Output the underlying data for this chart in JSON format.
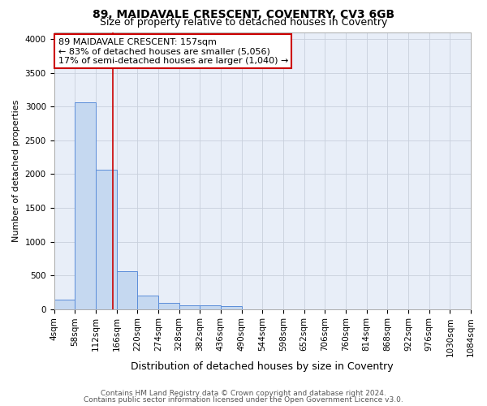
{
  "title1": "89, MAIDAVALE CRESCENT, COVENTRY, CV3 6GB",
  "title2": "Size of property relative to detached houses in Coventry",
  "xlabel": "Distribution of detached houses by size in Coventry",
  "ylabel": "Number of detached properties",
  "bin_labels": [
    "4sqm",
    "58sqm",
    "112sqm",
    "166sqm",
    "220sqm",
    "274sqm",
    "328sqm",
    "382sqm",
    "436sqm",
    "490sqm",
    "544sqm",
    "598sqm",
    "652sqm",
    "706sqm",
    "760sqm",
    "814sqm",
    "868sqm",
    "922sqm",
    "976sqm",
    "1030sqm",
    "1084sqm"
  ],
  "bin_edges": [
    4,
    58,
    112,
    166,
    220,
    274,
    328,
    382,
    436,
    490,
    544,
    598,
    652,
    706,
    760,
    814,
    868,
    922,
    976,
    1030,
    1084
  ],
  "bar_heights": [
    140,
    3060,
    2060,
    560,
    205,
    90,
    55,
    50,
    45,
    0,
    0,
    0,
    0,
    0,
    0,
    0,
    0,
    0,
    0,
    0
  ],
  "bar_color": "#c5d8f0",
  "bar_edge_color": "#5b8dd9",
  "vline_x": 157,
  "vline_color": "#cc0000",
  "ylim": [
    0,
    4100
  ],
  "yticks": [
    0,
    500,
    1000,
    1500,
    2000,
    2500,
    3000,
    3500,
    4000
  ],
  "annotation_line1": "89 MAIDAVALE CRESCENT: 157sqm",
  "annotation_line2": "← 83% of detached houses are smaller (5,056)",
  "annotation_line3": "17% of semi-detached houses are larger (1,040) →",
  "annotation_box_color": "#ffffff",
  "annotation_border_color": "#cc0000",
  "grid_color": "#c8d0dc",
  "bg_color": "#e8eef8",
  "footer1": "Contains HM Land Registry data © Crown copyright and database right 2024.",
  "footer2": "Contains public sector information licensed under the Open Government Licence v3.0.",
  "title1_fontsize": 10,
  "title2_fontsize": 9,
  "xlabel_fontsize": 9,
  "ylabel_fontsize": 8,
  "tick_fontsize": 7.5,
  "annotation_fontsize": 8,
  "footer_fontsize": 6.5
}
